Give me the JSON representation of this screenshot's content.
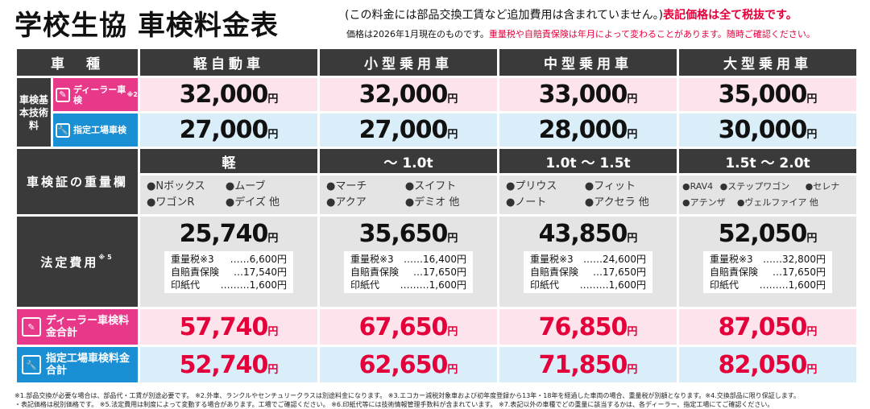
{
  "header": {
    "title": "学校生協 車検料金表",
    "note1": "(この料金には部品交換工賃など追加費用は含まれていません。)",
    "note1_red": "表記価格は全て税抜です。",
    "note2": "価格は2026年1月現在のものです。",
    "note2_red": "重量税や自賠責保険は年月によって変わることがあります。随時ご確認ください。"
  },
  "table": {
    "corner": "車　種",
    "columns": [
      "軽自動車",
      "小型乗用車",
      "中型乗用車",
      "大型乗用車"
    ],
    "kihon_label": "車検基本技術料",
    "dealer_label": "ディーラー車検",
    "dealer_sup": "※2",
    "shitei_label": "指定工場車検",
    "yen": "円",
    "dealer_prices": [
      "32,000",
      "32,000",
      "33,000",
      "35,000"
    ],
    "shitei_prices": [
      "27,000",
      "27,000",
      "28,000",
      "30,000"
    ],
    "weight_label": "車検証の重量欄",
    "weight_classes": [
      "軽",
      "〜 1.0t",
      "1.0t 〜 1.5t",
      "1.5t 〜 2.0t"
    ],
    "cars": [
      [
        "●Nボックス",
        "●ムーブ",
        "●ワゴンR",
        "●デイズ 他"
      ],
      [
        "●マーチ",
        "●スイフト",
        "●アクア",
        "●デミオ 他"
      ],
      [
        "●プリウス",
        "●フィット",
        "●ノート",
        "●アクセラ 他"
      ],
      [
        "●RAV4",
        "●ステップワゴン",
        "●セレナ",
        "●アテンザ",
        "●ヴェルファイア 他"
      ]
    ],
    "legal_label": "法定費用",
    "legal_sup": "※5",
    "legal_prices": [
      "25,740",
      "35,650",
      "43,850",
      "52,050"
    ],
    "breakdown_labels": [
      "重量税※3",
      "自賠責保険",
      "印紙代"
    ],
    "breakdown": [
      [
        "……6,600円",
        "…17,540円",
        "………1,600円"
      ],
      [
        "……16,400円",
        "…17,650円",
        "………1,600円"
      ],
      [
        "……24,600円",
        "…17,650円",
        "………1,600円"
      ],
      [
        "……32,800円",
        "…17,650円",
        "………1,600円"
      ]
    ],
    "dealer_total_label": "ディーラー車検料金合計",
    "shitei_total_label": "指定工場車検料金合計",
    "dealer_totals": [
      "57,740",
      "67,650",
      "76,850",
      "87,050"
    ],
    "shitei_totals": [
      "52,740",
      "62,650",
      "71,850",
      "82,050"
    ]
  },
  "footnotes": {
    "line1": "※1.部品交換が必要な場合は、部品代・工賃が別途必要です。 ※2.外車、ランクルやセンチュリークラスは別途料金になります。 ※3.エコカー減税対象車および初年度登録から13年・18年を経過した車両の場合、重量税が別額となります。※4.交換部品に限り保証します。",
    "line2": "・表記価格は税別価格です。 ※5.法定費用は制度によって変動する場合があります。工場でご確認ください。 ※6.印紙代等には技術情報管理手数料が含まれています。 ※7.表記以外の車種でどの重量に該当するかは、各ディーラー、指定工場にてご確認ください。"
  }
}
